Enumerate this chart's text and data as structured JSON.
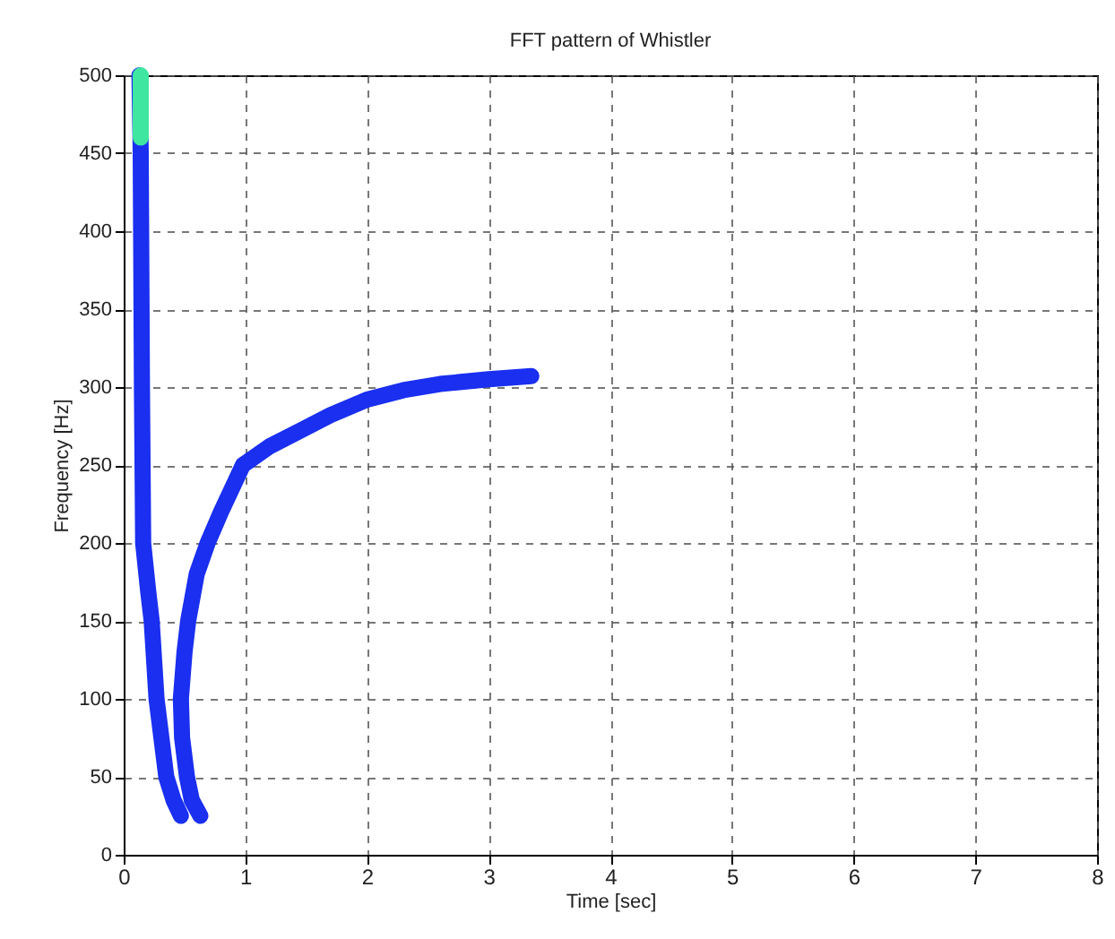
{
  "chart_data": {
    "type": "line",
    "title": "FFT pattern of Whistler",
    "xlabel": "Time [sec]",
    "ylabel": "Frequency  [Hz]",
    "xlim": [
      0,
      8
    ],
    "xticks": [
      0,
      1,
      2,
      3,
      4,
      5,
      6,
      7,
      8
    ],
    "ylim": [
      0,
      500
    ],
    "yticks": [
      0,
      50,
      100,
      150,
      200,
      250,
      300,
      350,
      400,
      450,
      500
    ],
    "grid": true,
    "legend": false,
    "marker": "none",
    "line_style": "solid",
    "series": [
      {
        "color": "#1a2ff0",
        "x": [
          0.13,
          0.14,
          0.15,
          0.16,
          0.2,
          0.23,
          0.27,
          0.31,
          0.35,
          0.41,
          0.47
        ],
        "values": [
          500,
          450,
          300,
          200,
          170,
          150,
          100,
          75,
          50,
          35,
          25
        ]
      },
      {
        "color": "#1a2ff0",
        "x": [
          0.63,
          0.56,
          0.52,
          0.48,
          0.47,
          0.5,
          0.53,
          0.6,
          0.69,
          0.8,
          0.98,
          1.2,
          1.45,
          1.7,
          2.0,
          2.3,
          2.6,
          3.0,
          3.35
        ],
        "values": [
          25,
          35,
          50,
          75,
          100,
          130,
          150,
          180,
          200,
          220,
          250,
          262,
          272,
          282,
          292,
          298,
          302,
          305,
          307
        ]
      },
      {
        "color": "#3fe6a0",
        "x": [
          0.14,
          0.14
        ],
        "values": [
          460,
          500
        ]
      }
    ]
  }
}
